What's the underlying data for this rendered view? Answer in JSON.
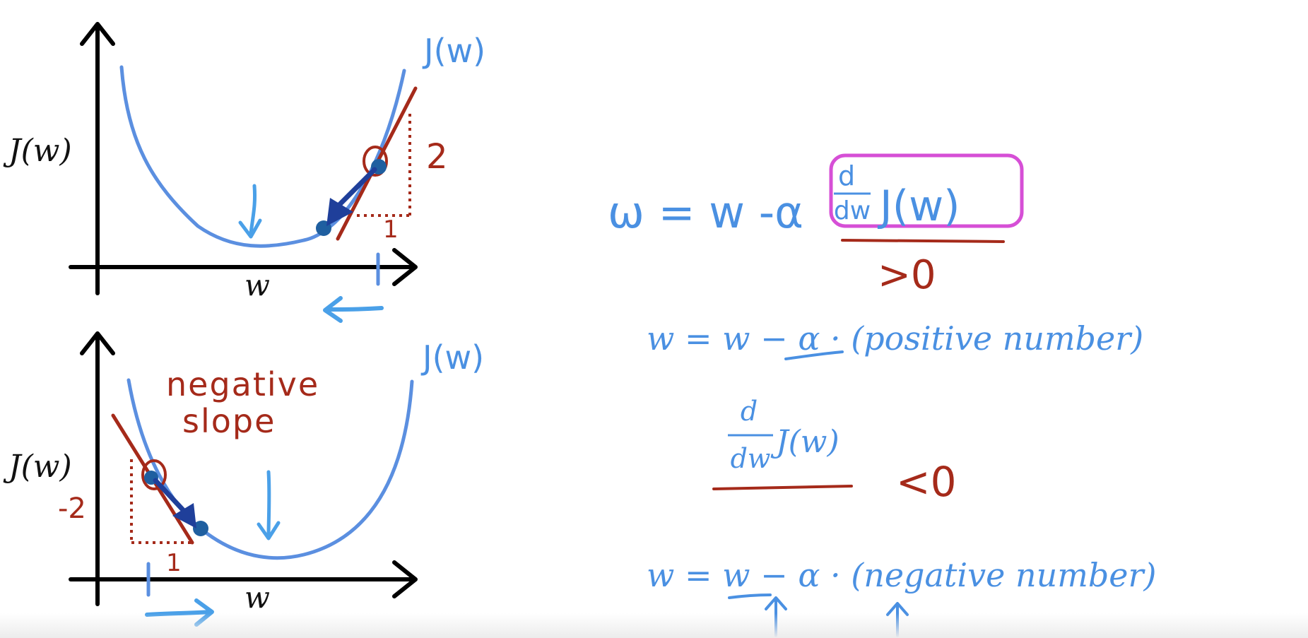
{
  "top_graph": {
    "y_axis_label": "J(w)",
    "x_axis_label": "w",
    "curve_label": "J(w)",
    "rise_label": "2",
    "run_label": "1"
  },
  "bottom_graph": {
    "y_axis_label": "J(w)",
    "x_axis_label": "w",
    "curve_label": "J(w)",
    "slope_annotation_line1": "negative",
    "slope_annotation_line2": "slope",
    "rise_label": "-2",
    "run_label": "1"
  },
  "equations": {
    "update_rule_lhs": "ω = w -α",
    "derivative_numerator": "d",
    "derivative_denominator": "dw",
    "derivative_function": "J(w)",
    "positive_condition": ">0",
    "positive_update": "w = w − α · (positive number)",
    "derivative2_numerator": "d",
    "derivative2_denominator": "dw",
    "derivative2_function": "J(w)",
    "negative_condition": "<0",
    "negative_update": "w = w − α · (negative number)"
  },
  "colors": {
    "curve_blue": "#5b8fe0",
    "ink_blue": "#4a90e2",
    "dark_blue": "#1f3f9a",
    "dark_red": "#a52a1a",
    "magenta_box": "#d64fd6",
    "axis_black": "#000000"
  }
}
